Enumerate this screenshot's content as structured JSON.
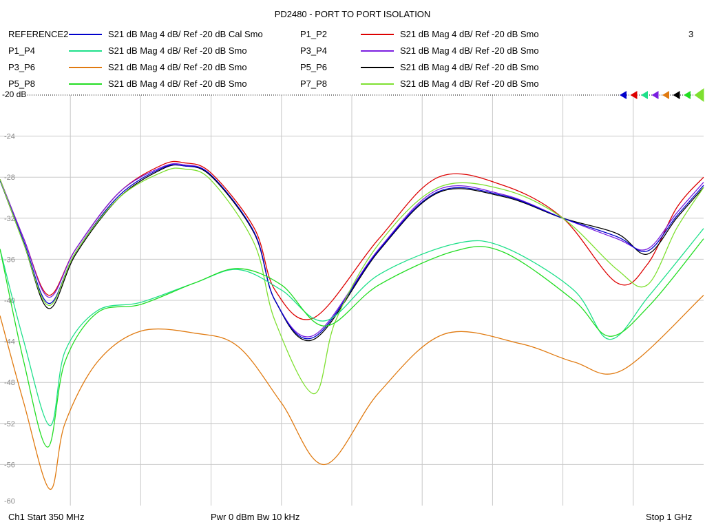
{
  "title": "PD2480 - PORT TO PORT ISOLATION",
  "channel_number": "3",
  "footer": {
    "start": "Ch1  Start  350 MHz",
    "power": "Pwr  0 dBm  Bw  10 kHz",
    "stop": "Stop  1 GHz"
  },
  "reference_label": "-20 dB",
  "legend": [
    {
      "name": "REFERENCE2",
      "desc": "S21  dB Mag  4 dB/ Ref -20 dB  Cal Smo",
      "color": "#0000cc"
    },
    {
      "name": "P1_P2",
      "desc": "S21  dB Mag  4 dB/ Ref -20 dB  Smo",
      "color": "#dd0000"
    },
    {
      "name": "P1_P4",
      "desc": "S21  dB Mag  4 dB/ Ref -20 dB  Smo",
      "color": "#1ee08a"
    },
    {
      "name": "P3_P4",
      "desc": "S21  dB Mag  4 dB/ Ref -20 dB  Smo",
      "color": "#7a1ee0"
    },
    {
      "name": "P3_P6",
      "desc": "S21  dB Mag  4 dB/ Ref -20 dB  Smo",
      "color": "#e07a10"
    },
    {
      "name": "P5_P6",
      "desc": "S21  dB Mag  4 dB/ Ref -20 dB  Smo",
      "color": "#000000"
    },
    {
      "name": "P5_P8",
      "desc": "S21  dB Mag  4 dB/ Ref -20 dB  Smo",
      "color": "#22dd22"
    },
    {
      "name": "P7_P8",
      "desc": "S21  dB Mag  4 dB/ Ref -20 dB  Smo",
      "color": "#7ee030"
    }
  ],
  "chart_data": {
    "type": "line",
    "title": "PD2480 - PORT TO PORT ISOLATION",
    "xlabel": "",
    "ylabel": "",
    "xlim": [
      350,
      1000
    ],
    "ylim": [
      -60,
      -20
    ],
    "x_unit": "MHz",
    "y_unit": "dB",
    "grid": true,
    "yticks": [
      -24,
      -28,
      -32,
      -36,
      -40,
      -44,
      -48,
      -52,
      -56,
      -60
    ],
    "yticks_labels": [
      "-24",
      "-28",
      "-32",
      "-36",
      "-40",
      "-44",
      "-48",
      "-52",
      "-56",
      "-60"
    ],
    "series": [
      {
        "name": "P1_P2",
        "color": "#dd0000",
        "x": [
          350,
          372,
          395,
          420,
          460,
          500,
          520,
          545,
          585,
          604,
          640,
          700,
          755,
          815,
          870,
          920,
          948,
          975,
          1000
        ],
        "y": [
          -28.2,
          -34,
          -39.5,
          -35,
          -29.5,
          -26.8,
          -26.6,
          -27.6,
          -33,
          -39,
          -41.7,
          -34,
          -28,
          -28.8,
          -32,
          -38.3,
          -36.5,
          -31,
          -28
        ]
      },
      {
        "name": "P3_P4",
        "color": "#7a1ee0",
        "x": [
          350,
          372,
          395,
          420,
          460,
          500,
          520,
          545,
          585,
          604,
          640,
          700,
          755,
          815,
          870,
          920,
          948,
          975,
          1000
        ],
        "y": [
          -28.2,
          -34,
          -39.7,
          -35,
          -29.5,
          -27,
          -26.8,
          -27.8,
          -33.5,
          -40,
          -43.4,
          -35,
          -29.2,
          -29.7,
          -32,
          -34,
          -35,
          -31.5,
          -28.5
        ]
      },
      {
        "name": "P5_P6",
        "color": "#000000",
        "x": [
          350,
          372,
          395,
          420,
          460,
          500,
          520,
          545,
          585,
          604,
          640,
          700,
          755,
          815,
          870,
          920,
          948,
          975,
          1000
        ],
        "y": [
          -28.3,
          -34.5,
          -40.8,
          -35.5,
          -30,
          -27.2,
          -26.9,
          -27.9,
          -33.5,
          -40,
          -43.8,
          -35.2,
          -29.5,
          -29.9,
          -32,
          -33.5,
          -35.5,
          -32,
          -29
        ]
      },
      {
        "name": "REFERENCE2",
        "color": "#0000cc",
        "x": [
          350,
          372,
          395,
          420,
          460,
          500,
          520,
          545,
          585,
          604,
          640,
          700,
          755,
          815,
          870,
          920,
          948,
          975,
          1000
        ],
        "y": [
          -28.3,
          -34.3,
          -40.3,
          -35.3,
          -29.8,
          -27.1,
          -26.9,
          -27.8,
          -33.4,
          -40,
          -43.6,
          -35.1,
          -29.4,
          -29.8,
          -32,
          -33.8,
          -35.2,
          -31.8,
          -28.8
        ]
      },
      {
        "name": "P7_P8",
        "color": "#7ee030",
        "x": [
          350,
          372,
          395,
          420,
          460,
          500,
          520,
          545,
          585,
          604,
          640,
          660,
          700,
          755,
          815,
          870,
          920,
          948,
          975,
          1000
        ],
        "y": [
          -28.2,
          -34.5,
          -40.5,
          -35.3,
          -30,
          -27.5,
          -27.2,
          -28.3,
          -34.5,
          -42,
          -49.1,
          -42,
          -34.5,
          -29,
          -29.2,
          -32,
          -37,
          -38.5,
          -33,
          -29
        ]
      },
      {
        "name": "P1_P4",
        "color": "#1ee08a",
        "x": [
          350,
          372,
          396,
          410,
          440,
          480,
          530,
          570,
          610,
          650,
          700,
          770,
          815,
          880,
          913,
          950,
          1000
        ],
        "y": [
          -35,
          -44,
          -52.2,
          -45,
          -41,
          -40.2,
          -38.3,
          -37,
          -39,
          -42,
          -37.5,
          -34.5,
          -34.8,
          -39,
          -43.8,
          -39.5,
          -33
        ]
      },
      {
        "name": "P5_P8",
        "color": "#22dd22",
        "x": [
          350,
          372,
          394,
          410,
          440,
          480,
          530,
          570,
          610,
          650,
          700,
          770,
          815,
          880,
          913,
          950,
          1000
        ],
        "y": [
          -35,
          -46,
          -54.3,
          -46,
          -41.2,
          -40.4,
          -38.3,
          -36.9,
          -38.5,
          -42.5,
          -38.5,
          -35.2,
          -35.3,
          -40,
          -43.5,
          -40.5,
          -34
        ]
      },
      {
        "name": "P3_P6",
        "color": "#e07a10",
        "x": [
          350,
          372,
          396,
          410,
          440,
          480,
          530,
          570,
          610,
          650,
          700,
          760,
          830,
          880,
          925,
          1000
        ],
        "y": [
          -41.5,
          -50,
          -58.4,
          -52,
          -46,
          -43,
          -43.2,
          -44.5,
          -50,
          -56,
          -49,
          -43.3,
          -44.2,
          -46,
          -46.8,
          -39.5
        ]
      }
    ]
  }
}
